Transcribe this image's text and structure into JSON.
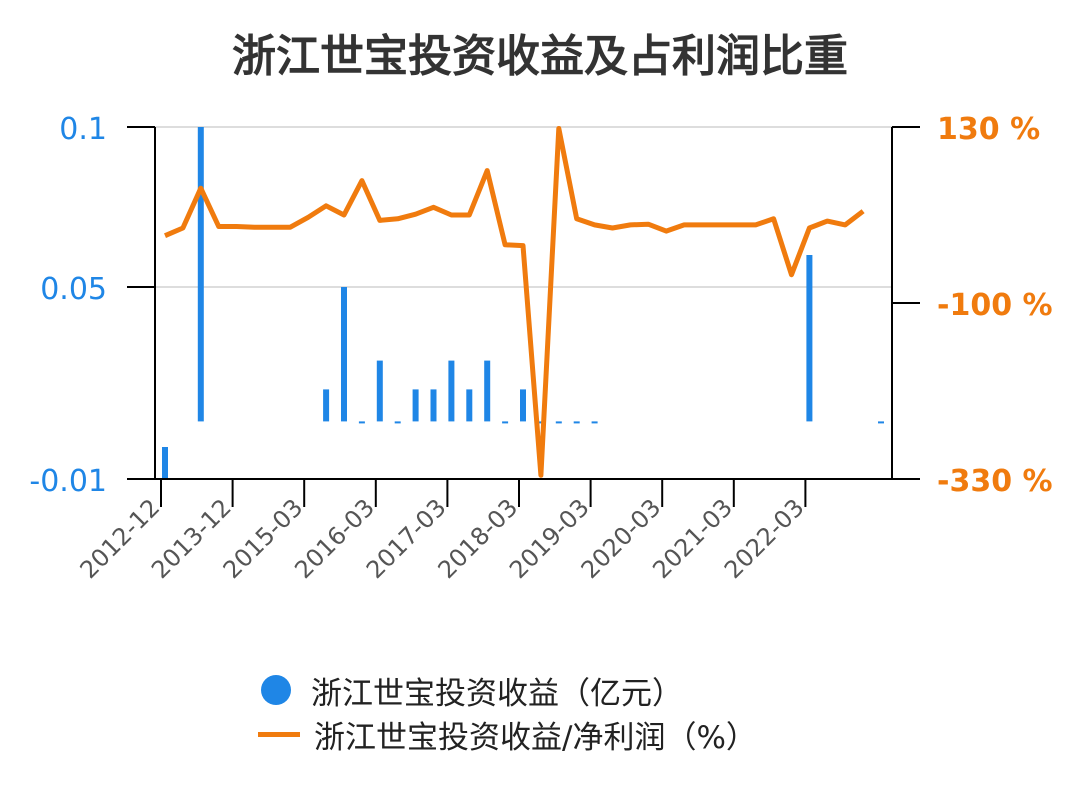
{
  "chart_data": {
    "type": "bar+line",
    "title": "浙江世宝投资收益及占利润比重",
    "x_tick_labels": [
      "2012-12",
      "2013-12",
      "2015-03",
      "2016-03",
      "2017-03",
      "2018-03",
      "2019-03",
      "2020-03",
      "2021-03",
      "2022-03"
    ],
    "left_axis": {
      "ticks": [
        "0.1",
        "0.05",
        "-0.01"
      ],
      "range": [
        -0.01,
        0.1
      ]
    },
    "right_axis": {
      "ticks": [
        "130 %",
        "-100 %",
        "-330 %"
      ],
      "range": [
        -330,
        130
      ]
    },
    "series": [
      {
        "name": "浙江世宝投资收益（亿元）",
        "kind": "bar",
        "axis": "left",
        "color": "#1f86e6",
        "points": [
          {
            "i": 0,
            "v": -0.01
          },
          {
            "i": 2,
            "v": 0.1
          },
          {
            "i": 9,
            "v": 0.018
          },
          {
            "i": 10,
            "v": 0.05
          },
          {
            "i": 11,
            "v": 0.008
          },
          {
            "i": 12,
            "v": 0.027
          },
          {
            "i": 13,
            "v": 0.008
          },
          {
            "i": 14,
            "v": 0.018
          },
          {
            "i": 15,
            "v": 0.018
          },
          {
            "i": 16,
            "v": 0.027
          },
          {
            "i": 17,
            "v": 0.018
          },
          {
            "i": 18,
            "v": 0.027
          },
          {
            "i": 19,
            "v": 0.008
          },
          {
            "i": 20,
            "v": 0.018
          },
          {
            "i": 21,
            "v": 0.008
          },
          {
            "i": 22,
            "v": 0.008
          },
          {
            "i": 23,
            "v": 0.008
          },
          {
            "i": 24,
            "v": 0.008
          },
          {
            "i": 36,
            "v": 0.06
          },
          {
            "i": 40,
            "v": 0.008
          }
        ]
      },
      {
        "name": "浙江世宝投资收益/净利润（%）",
        "kind": "line",
        "axis": "right",
        "color": "#f07b0e",
        "values": [
          -12,
          -2,
          50,
          0,
          0,
          -1,
          -1,
          -1,
          12,
          27,
          15,
          60,
          8,
          10,
          16,
          25,
          15,
          15,
          73,
          -24,
          -25,
          -325,
          128,
          10,
          2,
          -2,
          2,
          3,
          -6,
          2,
          2,
          2,
          2,
          2,
          10,
          -63,
          -2,
          7,
          2,
          20
        ]
      }
    ]
  },
  "legend": {
    "bar_label": "浙江世宝投资收益（亿元）",
    "line_label": "浙江世宝投资收益/净利润（%）"
  }
}
